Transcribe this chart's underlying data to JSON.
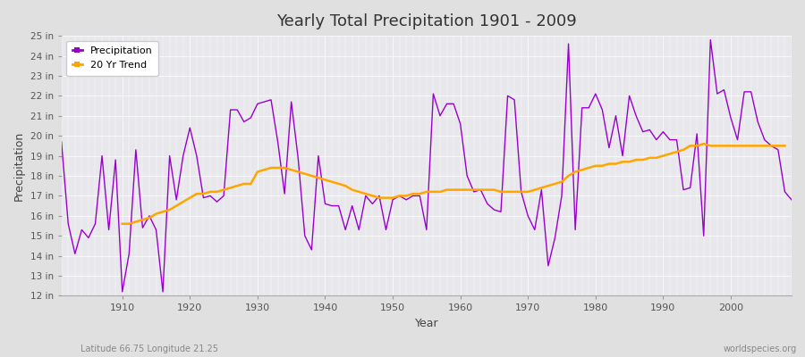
{
  "title": "Yearly Total Precipitation 1901 - 2009",
  "xlabel": "Year",
  "ylabel": "Precipitation",
  "subtitle_left": "Latitude 66.75 Longitude 21.25",
  "subtitle_right": "worldspecies.org",
  "precip_color": "#9900cc",
  "trend_color": "#FFA500",
  "fig_bg_color": "#e0e0e0",
  "plot_bg_color": "#e8e8ec",
  "ylim": [
    12,
    25
  ],
  "xlim": [
    1901,
    2009
  ],
  "ytick_labels": [
    "12 in",
    "13 in",
    "14 in",
    "15 in",
    "16 in",
    "17 in",
    "18 in",
    "19 in",
    "20 in",
    "21 in",
    "22 in",
    "23 in",
    "24 in",
    "25 in"
  ],
  "ytick_values": [
    12,
    13,
    14,
    15,
    16,
    17,
    18,
    19,
    20,
    21,
    22,
    23,
    24,
    25
  ],
  "xtick_values": [
    1910,
    1920,
    1930,
    1940,
    1950,
    1960,
    1970,
    1980,
    1990,
    2000
  ],
  "years": [
    1901,
    1902,
    1903,
    1904,
    1905,
    1906,
    1907,
    1908,
    1909,
    1910,
    1911,
    1912,
    1913,
    1914,
    1915,
    1916,
    1917,
    1918,
    1919,
    1920,
    1921,
    1922,
    1923,
    1924,
    1925,
    1926,
    1927,
    1928,
    1929,
    1930,
    1931,
    1932,
    1933,
    1934,
    1935,
    1936,
    1937,
    1938,
    1939,
    1940,
    1941,
    1942,
    1943,
    1944,
    1945,
    1946,
    1947,
    1948,
    1949,
    1950,
    1951,
    1952,
    1953,
    1954,
    1955,
    1956,
    1957,
    1958,
    1959,
    1960,
    1961,
    1962,
    1963,
    1964,
    1965,
    1966,
    1967,
    1968,
    1969,
    1970,
    1971,
    1972,
    1973,
    1974,
    1975,
    1976,
    1977,
    1978,
    1979,
    1980,
    1981,
    1982,
    1983,
    1984,
    1985,
    1986,
    1987,
    1988,
    1989,
    1990,
    1991,
    1992,
    1993,
    1994,
    1995,
    1996,
    1997,
    1998,
    1999,
    2000,
    2001,
    2002,
    2003,
    2004,
    2005,
    2006,
    2007,
    2008,
    2009
  ],
  "precipitation": [
    19.7,
    15.6,
    14.1,
    15.3,
    14.9,
    15.6,
    19.0,
    15.3,
    18.8,
    12.2,
    14.1,
    19.3,
    15.4,
    16.0,
    15.3,
    12.2,
    19.0,
    16.8,
    19.0,
    20.4,
    19.0,
    16.9,
    17.0,
    16.7,
    17.0,
    21.3,
    21.3,
    20.7,
    20.9,
    21.6,
    21.7,
    21.8,
    19.7,
    17.1,
    21.7,
    18.9,
    15.0,
    14.3,
    19.0,
    16.6,
    16.5,
    16.5,
    15.3,
    16.5,
    15.3,
    17.0,
    16.6,
    17.0,
    15.3,
    16.8,
    17.0,
    16.8,
    17.0,
    17.0,
    15.3,
    22.1,
    21.0,
    21.6,
    21.6,
    20.6,
    18.0,
    17.2,
    17.3,
    16.6,
    16.3,
    16.2,
    22.0,
    21.8,
    17.2,
    16.0,
    15.3,
    17.3,
    13.5,
    14.9,
    17.0,
    24.6,
    15.3,
    21.4,
    21.4,
    22.1,
    21.3,
    19.4,
    21.0,
    19.0,
    22.0,
    21.0,
    20.2,
    20.3,
    19.8,
    20.2,
    19.8,
    19.8,
    17.3,
    17.4,
    20.1,
    15.0,
    24.8,
    22.1,
    22.3,
    20.9,
    19.8,
    22.2,
    22.2,
    20.7,
    19.8,
    19.5,
    19.3,
    17.2,
    16.8
  ],
  "trend": [
    null,
    null,
    null,
    null,
    null,
    null,
    null,
    null,
    null,
    15.6,
    15.6,
    15.7,
    15.8,
    15.9,
    16.1,
    16.2,
    16.3,
    16.5,
    16.7,
    16.9,
    17.1,
    17.1,
    17.2,
    17.2,
    17.3,
    17.4,
    17.5,
    17.6,
    17.6,
    18.2,
    18.3,
    18.4,
    18.4,
    18.4,
    18.3,
    18.2,
    18.1,
    18.0,
    17.9,
    17.8,
    17.7,
    17.6,
    17.5,
    17.3,
    17.2,
    17.1,
    17.0,
    16.9,
    16.9,
    16.9,
    17.0,
    17.0,
    17.1,
    17.1,
    17.2,
    17.2,
    17.2,
    17.3,
    17.3,
    17.3,
    17.3,
    17.3,
    17.3,
    17.3,
    17.3,
    17.2,
    17.2,
    17.2,
    17.2,
    17.2,
    17.3,
    17.4,
    17.5,
    17.6,
    17.7,
    18.0,
    18.2,
    18.3,
    18.4,
    18.5,
    18.5,
    18.6,
    18.6,
    18.7,
    18.7,
    18.8,
    18.8,
    18.9,
    18.9,
    19.0,
    19.1,
    19.2,
    19.3,
    19.5,
    19.5,
    19.6,
    19.5,
    19.5,
    19.5,
    19.5,
    19.5,
    19.5,
    19.5,
    19.5,
    19.5,
    19.5,
    19.5,
    19.5
  ]
}
